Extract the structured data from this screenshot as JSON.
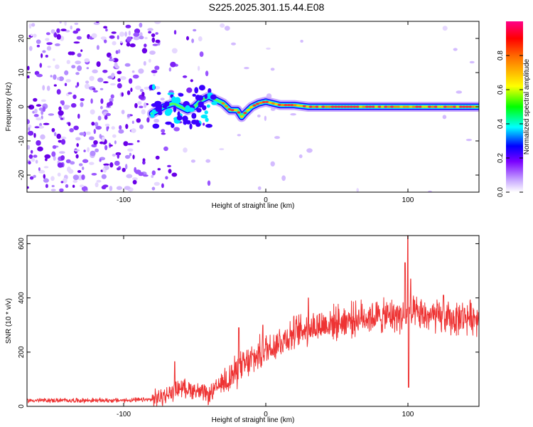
{
  "title": "S225.2025.301.15.44.E08",
  "chart_data": [
    {
      "type": "heatmap",
      "name": "spectrogram",
      "xlabel": "Height of straight line (km)",
      "ylabel": "Frequency (Hz)",
      "xlim": [
        -168,
        150
      ],
      "ylim": [
        -25,
        25
      ],
      "xticks": [
        "-100",
        "0",
        "100"
      ],
      "xtick_values": [
        -100,
        0,
        100
      ],
      "yticks": [
        "-20",
        "-10",
        "0",
        "10",
        "20"
      ],
      "ytick_values": [
        -20,
        -10,
        0,
        10,
        20
      ],
      "colorbar": {
        "label": "Normalized spectral amplitude",
        "ticks": [
          "0.0",
          "0.2",
          "0.4",
          "0.6",
          "0.8"
        ],
        "tick_values": [
          0.0,
          0.2,
          0.4,
          0.6,
          0.8
        ],
        "range": [
          0,
          1
        ]
      },
      "ridge": {
        "x": [
          -80,
          -72,
          -65,
          -60,
          -55,
          -50,
          -45,
          -40,
          -35,
          -30,
          -25,
          -20,
          -17,
          -15,
          -10,
          -5,
          0,
          5,
          10,
          20,
          30,
          40,
          60,
          80,
          95,
          100,
          150
        ],
        "freq": [
          -2,
          0,
          1,
          0,
          -1,
          0,
          2,
          3,
          2,
          1,
          -1,
          -1,
          -3,
          -2,
          0,
          1,
          1.5,
          1,
          0.5,
          0.5,
          0,
          0,
          0,
          0,
          0,
          0,
          0
        ]
      }
    },
    {
      "type": "line",
      "name": "snr",
      "xlabel": "Height of straight line (km)",
      "ylabel": "SNR (10 * v/v)",
      "xlim": [
        -168,
        150
      ],
      "ylim": [
        0,
        630
      ],
      "xticks": [
        "-100",
        "0",
        "100"
      ],
      "xtick_values": [
        -100,
        0,
        100
      ],
      "yticks": [
        "0",
        "200",
        "400",
        "600"
      ],
      "ytick_values": [
        0,
        200,
        400,
        600
      ],
      "color": "#ee3333",
      "trend": {
        "x": [
          -168,
          -100,
          -80,
          -70,
          -60,
          -50,
          -40,
          -30,
          -20,
          -10,
          0,
          10,
          20,
          30,
          40,
          50,
          60,
          70,
          80,
          90,
          95,
          100,
          105,
          110,
          120,
          130,
          140,
          150
        ],
        "y": [
          22,
          22,
          25,
          40,
          70,
          60,
          40,
          90,
          130,
          170,
          210,
          240,
          270,
          290,
          300,
          310,
          320,
          330,
          330,
          335,
          335,
          330,
          340,
          335,
          330,
          320,
          330,
          330
        ]
      },
      "spikes": [
        {
          "x": -64,
          "y": 165
        },
        {
          "x": -19,
          "y": 290
        },
        {
          "x": -2,
          "y": 300
        },
        {
          "x": 30,
          "y": 400
        },
        {
          "x": 98,
          "y": 530
        },
        {
          "x": 100,
          "y": 630
        },
        {
          "x": 100.5,
          "y": 70
        },
        {
          "x": 102,
          "y": 470
        },
        {
          "x": 125,
          "y": 410
        }
      ]
    }
  ]
}
